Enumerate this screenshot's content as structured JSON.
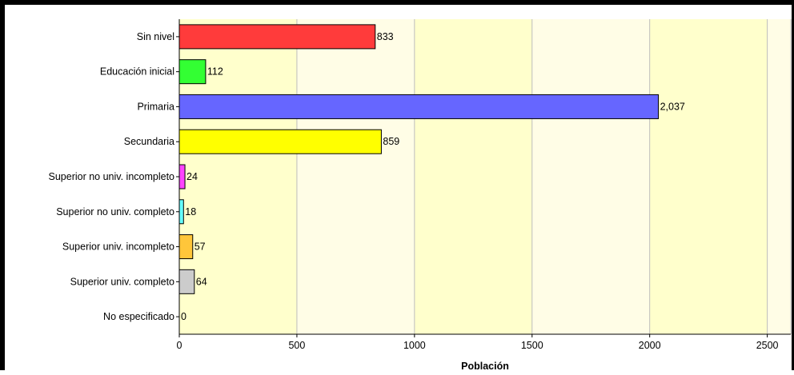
{
  "chart_data": {
    "type": "bar",
    "orientation": "horizontal",
    "categories": [
      "Sin nivel",
      "Educación inicial",
      "Primaria",
      "Secundaria",
      "Superior no univ. incompleto",
      "Superior no univ. completo",
      "Superior univ. incompleto",
      "Superior univ. completo",
      "No especificado"
    ],
    "values": [
      833,
      112,
      2037,
      859,
      24,
      18,
      57,
      64,
      0
    ],
    "value_labels": [
      "833",
      "112",
      "2,037",
      "859",
      "24",
      "18",
      "57",
      "64",
      "0"
    ],
    "bar_colors": [
      "#ff3b3b",
      "#33ff33",
      "#6666ff",
      "#ffff00",
      "#ff44ff",
      "#66ffff",
      "#ffc63a",
      "#cccccc",
      "#ffffff"
    ],
    "xlabel": "Población",
    "ylabel": "",
    "title": "",
    "xlim": [
      0,
      2600
    ],
    "xticks": [
      0,
      500,
      1000,
      1500,
      2000,
      2500
    ],
    "xtick_labels": [
      "0",
      "500",
      "1000",
      "1500",
      "2000",
      "2500"
    ],
    "grid": "vertical",
    "legend": "none",
    "band_colors": [
      "#ffffcc",
      "#fffde6"
    ]
  }
}
